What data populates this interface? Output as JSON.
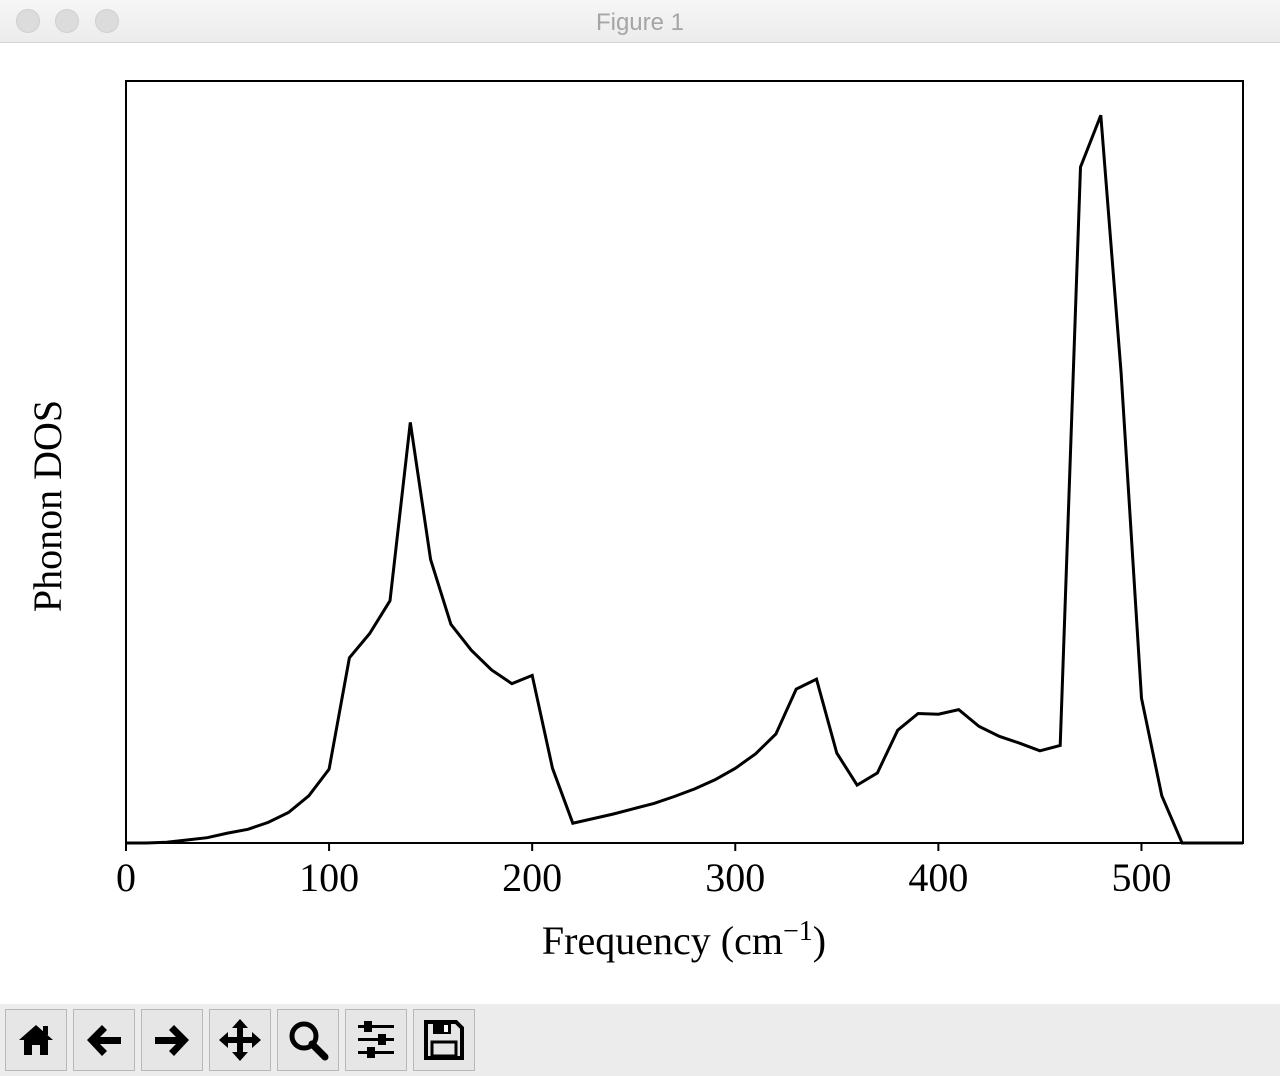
{
  "window": {
    "title": "Figure 1"
  },
  "toolbar": {
    "buttons": [
      {
        "icon": "home-icon",
        "tooltip": "Home"
      },
      {
        "icon": "back-arrow-icon",
        "tooltip": "Back"
      },
      {
        "icon": "forward-arrow-icon",
        "tooltip": "Forward"
      },
      {
        "icon": "pan-move-icon",
        "tooltip": "Pan"
      },
      {
        "icon": "zoom-magnifier-icon",
        "tooltip": "Zoom"
      },
      {
        "icon": "configure-subplots-icon",
        "tooltip": "Subplots"
      },
      {
        "icon": "save-floppy-icon",
        "tooltip": "Save"
      }
    ]
  },
  "chart_data": {
    "type": "line",
    "title": "",
    "xlabel": "Frequency (cm",
    "xlabel_superscript": "−1",
    "xlabel_suffix": ")",
    "ylabel": "Phonon DOS",
    "xlim": [
      0,
      550
    ],
    "ylim": [
      0,
      1
    ],
    "xticks": [
      0,
      100,
      200,
      300,
      400,
      500
    ],
    "yticks_shown": false,
    "grid": false,
    "line_color": "#000000",
    "x": [
      0,
      10,
      20,
      30,
      40,
      50,
      60,
      70,
      80,
      90,
      100,
      110,
      120,
      130,
      140,
      150,
      160,
      170,
      180,
      190,
      200,
      210,
      220,
      230,
      240,
      250,
      260,
      270,
      280,
      290,
      300,
      310,
      320,
      330,
      340,
      350,
      360,
      370,
      380,
      390,
      400,
      410,
      420,
      430,
      440,
      450,
      460,
      470,
      480,
      490,
      500,
      510,
      520,
      530,
      540,
      550
    ],
    "y": [
      0.0,
      0.0,
      0.001,
      0.004,
      0.007,
      0.013,
      0.018,
      0.027,
      0.04,
      0.062,
      0.097,
      0.243,
      0.275,
      0.318,
      0.552,
      0.372,
      0.287,
      0.253,
      0.227,
      0.209,
      0.22,
      0.098,
      0.026,
      0.032,
      0.038,
      0.045,
      0.052,
      0.061,
      0.071,
      0.083,
      0.098,
      0.117,
      0.143,
      0.202,
      0.215,
      0.118,
      0.076,
      0.092,
      0.148,
      0.17,
      0.169,
      0.175,
      0.153,
      0.14,
      0.131,
      0.121,
      0.128,
      0.887,
      0.955,
      0.617,
      0.19,
      0.062,
      0.0,
      0.0,
      0.0,
      0.0
    ]
  }
}
